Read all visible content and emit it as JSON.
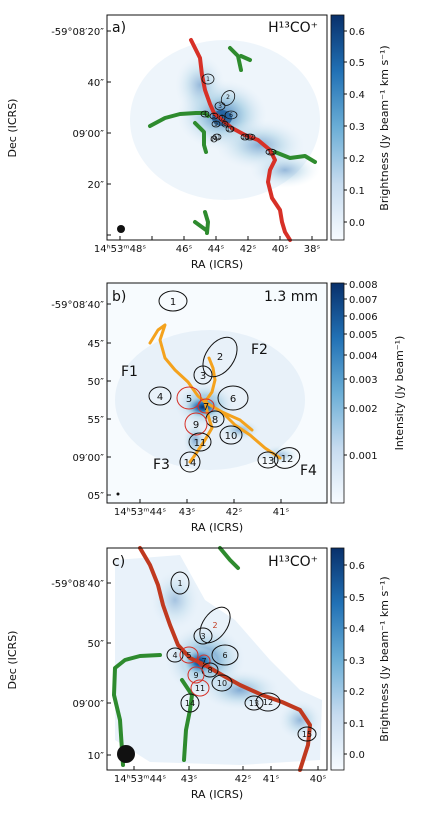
{
  "chart_data": [
    {
      "type": "heatmap",
      "panel_label": "a)",
      "title": "H¹³CO⁺",
      "xlabel": "RA (ICRS)",
      "ylabel": "Dec (ICRS)",
      "x_ticks": [
        "14ʰ53ᵐ48ˢ",
        "46ˢ",
        "44ˢ",
        "42ˢ",
        "40ˢ",
        "38ˢ"
      ],
      "y_ticks": [
        "-59°08′20″",
        "40″",
        "09′00″",
        "20″"
      ],
      "colorbar": {
        "label": "Brightness (Jy beam⁻¹ km s⁻¹)",
        "min": -0.05,
        "max": 0.65,
        "ticks": [
          "0.6",
          "0.5",
          "0.4",
          "0.3",
          "0.2",
          "0.1",
          "0.0"
        ]
      },
      "series": [
        {
          "name": "",
          "color": "#d73027"
        },
        {
          "name": "",
          "color": "#2e8b2e"
        }
      ],
      "cores": [
        "1",
        "2",
        "3",
        "4",
        "5",
        "6",
        "7",
        "8",
        "9",
        "10",
        "11",
        "12",
        "13",
        "14",
        "15"
      ]
    },
    {
      "type": "heatmap",
      "panel_label": "b)",
      "title": "1.3 mm",
      "xlabel": "RA (ICRS)",
      "ylabel": "",
      "x_ticks": [
        "14ʰ53ᵐ44ˢ",
        "43ˢ",
        "42ˢ",
        "41ˢ"
      ],
      "y_ticks": [
        "-59°08′40″",
        "45″",
        "50″",
        "55″",
        "09′00″",
        "05″"
      ],
      "colorbar": {
        "label": "Intensity (Jy beam⁻¹)",
        "min": 0.0,
        "max": 0.008,
        "scale": "log",
        "ticks": [
          "0.008",
          "0.007",
          "0.006",
          "0.005",
          "0.004",
          "0.003",
          "0.002",
          "0.001"
        ]
      },
      "filaments": [
        "F1",
        "F2",
        "F3",
        "F4"
      ],
      "series": [
        {
          "name": "",
          "color": "#f4a21d"
        }
      ],
      "cores": [
        "1",
        "2",
        "3",
        "4",
        "5",
        "6",
        "7",
        "8",
        "9",
        "10",
        "11",
        "12",
        "13",
        "14"
      ]
    },
    {
      "type": "heatmap",
      "panel_label": "c)",
      "title": "H¹³CO⁺",
      "xlabel": "RA (ICRS)",
      "ylabel": "Dec (ICRS)",
      "x_ticks": [
        "14ʰ53ᵐ44ˢ",
        "43ˢ",
        "42ˢ",
        "41ˢ",
        "40ˢ"
      ],
      "y_ticks": [
        "-59°08′40″",
        "50″",
        "09′00″",
        "10″"
      ],
      "colorbar": {
        "label": "Brightness (Jy beam⁻¹ km s⁻¹)",
        "min": -0.05,
        "max": 0.65,
        "ticks": [
          "0.6",
          "0.5",
          "0.4",
          "0.3",
          "0.2",
          "0.1",
          "0.0"
        ]
      },
      "series": [
        {
          "name": "",
          "color": "#c0391f"
        },
        {
          "name": "",
          "color": "#2e8b2e"
        }
      ],
      "cores": [
        "1",
        "2",
        "3",
        "4",
        "5",
        "6",
        "7",
        "8",
        "9",
        "10",
        "11",
        "12",
        "13",
        "14",
        "15"
      ]
    }
  ]
}
